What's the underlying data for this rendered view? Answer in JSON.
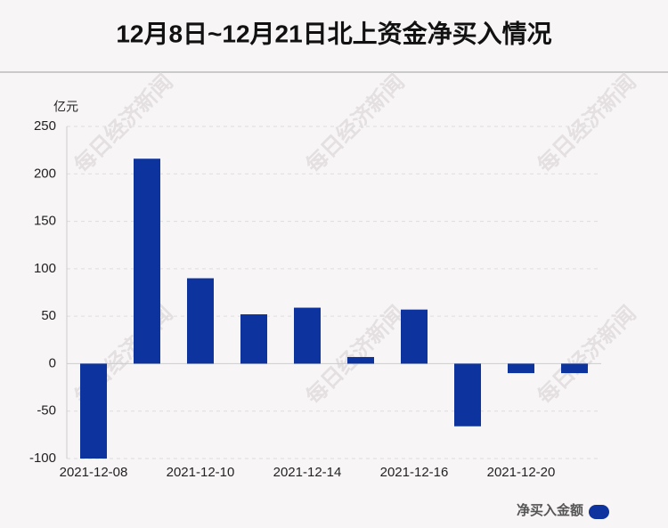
{
  "chart_data": {
    "type": "bar",
    "title": "12月8日~12月21日北上资金净买入情况",
    "y_unit": "亿元",
    "categories": [
      "2021-12-08",
      null,
      "2021-12-10",
      null,
      "2021-12-14",
      null,
      "2021-12-16",
      null,
      "2021-12-20",
      null
    ],
    "series": [
      {
        "name": "净买入金额",
        "color": "#0d339e",
        "values": [
          -100,
          216,
          90,
          52,
          59,
          7,
          57,
          -66,
          -10,
          -10
        ]
      }
    ],
    "ylim": [
      -100,
      250
    ],
    "yticks": [
      -100,
      -50,
      0,
      50,
      100,
      150,
      200,
      250
    ],
    "grid": true,
    "legend": "bottom-right",
    "watermark": "每日经济新闻"
  }
}
